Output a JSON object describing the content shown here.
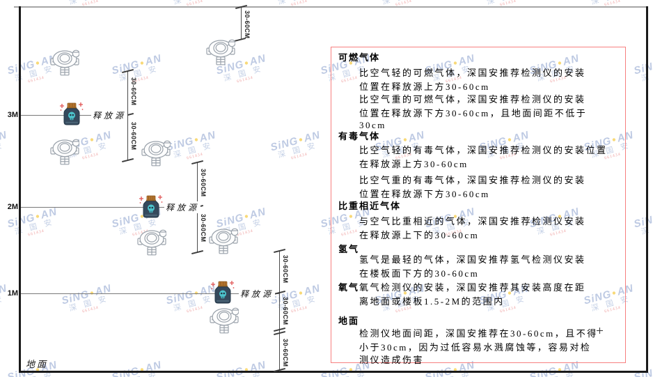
{
  "watermark": {
    "brand_a": "SiNG",
    "brand_b": "AN",
    "dot": "●",
    "cn": "深 国 安",
    "contact": "661434"
  },
  "axis": {
    "labels": [
      "3M",
      "2M",
      "1M"
    ],
    "ground": "地面"
  },
  "source_label": "释放源",
  "dim_label": "30-60CM",
  "colors": {
    "panel_border": "#f77f7f",
    "bottle_body": "#35495c",
    "bottle_cap": "#c07a30",
    "skull": "#4cc3cc",
    "sparkle": "#e05252",
    "detector_outline": "#9aa2ab"
  },
  "panel": {
    "sections": [
      {
        "heading": "可燃气体",
        "paras": [
          [
            "比空气轻的可燃气体，深国安推荐检测仪的安装",
            "位置在释放源上方30-60cm"
          ],
          [
            "比空气重的可燃气体，深国安推荐检测仪的安装",
            "位置在释放源下方30-60cm，且地面间距不低于",
            "30cm"
          ]
        ]
      },
      {
        "heading": "有毒气体",
        "paras": [
          [
            "比空气轻的有毒气体，深国安推荐检测仪的安装位置",
            "在释放源上方30-60cm"
          ],
          [
            "比空气重的有毒气体，深国安推荐检测仪的安装",
            "位置在释放源下方30-60cm"
          ]
        ]
      },
      {
        "heading": "比重相近气体",
        "paras": [
          [
            "与空气比重相近的气体，深国安推荐检测仪安装",
            "在释放源上下的30-60cm"
          ]
        ]
      },
      {
        "heading": "氢气",
        "paras": [
          [
            "氢气是最轻的气体，深国安推荐氢气检测仪安装",
            "在楼板面下方的30-60cm"
          ]
        ]
      },
      {
        "heading": "氧气",
        "paras": [
          [
            "氧气检测仪的安装，深国安推荐其安装高度在距",
            "离地面或楼板1.5-2M的范围内"
          ]
        ]
      },
      {
        "heading": "地面",
        "paras": [
          [
            "检测仪地面间距，深国安推荐在30-60cm，且不得",
            "小于30cm，因为过低容易水溅腐蚀等，容易对检",
            "测仪造成伤害"
          ]
        ]
      }
    ]
  }
}
